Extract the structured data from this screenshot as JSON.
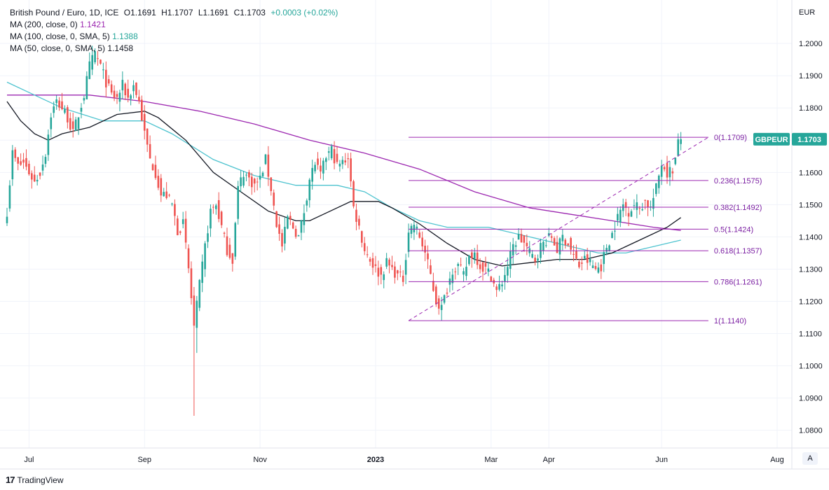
{
  "legend": {
    "title": "British Pound / Euro, 1D, ICE",
    "ohlc": {
      "o": "O1.1691",
      "h": "H1.1707",
      "l": "L1.1691",
      "c": "C1.1703",
      "chg": "+0.0003 (+0.02%)"
    },
    "ma200": {
      "label": "MA (200, close, 0)",
      "value": "1.1421"
    },
    "ma100": {
      "label": "MA (100, close, 0, SMA, 5)",
      "value": "1.1388"
    },
    "ma50": {
      "label": "MA (50, close, 0, SMA, 5)",
      "value": "1.1458"
    }
  },
  "footer": {
    "brand": "TradingView",
    "logo": "17"
  },
  "auto_button": "A",
  "chart_data": {
    "type": "candlestick",
    "currency": "EUR",
    "symbol_tag": "GBPEUR",
    "last_price": "1.1703",
    "ylim": [
      1.0745,
      1.2135
    ],
    "y_ticks": [
      "1.0800",
      "1.0900",
      "1.1000",
      "1.1100",
      "1.1200",
      "1.1300",
      "1.1400",
      "1.1500",
      "1.1600",
      "1.1700",
      "1.1800",
      "1.1900",
      "1.2000"
    ],
    "x_ticks": [
      {
        "label": "Jul",
        "index": 8
      },
      {
        "label": "Sep",
        "index": 50
      },
      {
        "label": "Nov",
        "index": 92
      },
      {
        "label": "2023",
        "index": 134
      },
      {
        "label": "Mar",
        "index": 176
      },
      {
        "label": "Apr",
        "index": 197
      },
      {
        "label": "Jun",
        "index": 238
      },
      {
        "label": "Aug",
        "index": 280
      }
    ],
    "bars_total": 300,
    "waypoints": [
      [
        0,
        1.148
      ],
      [
        2,
        1.166
      ],
      [
        4,
        1.162
      ],
      [
        6,
        1.163
      ],
      [
        8,
        1.16
      ],
      [
        10,
        1.157
      ],
      [
        12,
        1.16
      ],
      [
        14,
        1.166
      ],
      [
        16,
        1.178
      ],
      [
        18,
        1.182
      ],
      [
        20,
        1.18
      ],
      [
        22,
        1.177
      ],
      [
        24,
        1.172
      ],
      [
        26,
        1.178
      ],
      [
        28,
        1.184
      ],
      [
        30,
        1.193
      ],
      [
        32,
        1.197
      ],
      [
        34,
        1.193
      ],
      [
        36,
        1.188
      ],
      [
        38,
        1.184
      ],
      [
        40,
        1.183
      ],
      [
        42,
        1.187
      ],
      [
        44,
        1.183
      ],
      [
        46,
        1.187
      ],
      [
        48,
        1.182
      ],
      [
        50,
        1.172
      ],
      [
        52,
        1.164
      ],
      [
        54,
        1.16
      ],
      [
        56,
        1.153
      ],
      [
        58,
        1.153
      ],
      [
        60,
        1.15
      ],
      [
        62,
        1.142
      ],
      [
        64,
        1.144
      ],
      [
        66,
        1.13
      ],
      [
        68,
        1.112
      ],
      [
        70,
        1.125
      ],
      [
        72,
        1.137
      ],
      [
        74,
        1.148
      ],
      [
        76,
        1.15
      ],
      [
        78,
        1.143
      ],
      [
        80,
        1.136
      ],
      [
        82,
        1.133
      ],
      [
        84,
        1.155
      ],
      [
        86,
        1.16
      ],
      [
        88,
        1.158
      ],
      [
        90,
        1.156
      ],
      [
        92,
        1.158
      ],
      [
        94,
        1.164
      ],
      [
        96,
        1.155
      ],
      [
        98,
        1.144
      ],
      [
        100,
        1.137
      ],
      [
        102,
        1.146
      ],
      [
        104,
        1.143
      ],
      [
        106,
        1.14
      ],
      [
        108,
        1.148
      ],
      [
        110,
        1.158
      ],
      [
        112,
        1.163
      ],
      [
        114,
        1.159
      ],
      [
        116,
        1.165
      ],
      [
        118,
        1.167
      ],
      [
        120,
        1.162
      ],
      [
        122,
        1.163
      ],
      [
        124,
        1.165
      ],
      [
        126,
        1.149
      ],
      [
        128,
        1.143
      ],
      [
        130,
        1.136
      ],
      [
        132,
        1.133
      ],
      [
        134,
        1.13
      ],
      [
        136,
        1.128
      ],
      [
        138,
        1.132
      ],
      [
        140,
        1.13
      ],
      [
        142,
        1.128
      ],
      [
        144,
        1.127
      ],
      [
        146,
        1.142
      ],
      [
        148,
        1.144
      ],
      [
        150,
        1.14
      ],
      [
        152,
        1.135
      ],
      [
        154,
        1.128
      ],
      [
        156,
        1.12
      ],
      [
        158,
        1.118
      ],
      [
        160,
        1.124
      ],
      [
        162,
        1.13
      ],
      [
        164,
        1.131
      ],
      [
        166,
        1.128
      ],
      [
        168,
        1.134
      ],
      [
        170,
        1.135
      ],
      [
        172,
        1.131
      ],
      [
        174,
        1.13
      ],
      [
        176,
        1.128
      ],
      [
        178,
        1.123
      ],
      [
        180,
        1.126
      ],
      [
        182,
        1.131
      ],
      [
        184,
        1.137
      ],
      [
        186,
        1.14
      ],
      [
        188,
        1.138
      ],
      [
        190,
        1.135
      ],
      [
        192,
        1.133
      ],
      [
        194,
        1.137
      ],
      [
        196,
        1.139
      ],
      [
        198,
        1.14
      ],
      [
        200,
        1.136
      ],
      [
        202,
        1.14
      ],
      [
        204,
        1.138
      ],
      [
        206,
        1.134
      ],
      [
        208,
        1.131
      ],
      [
        210,
        1.133
      ],
      [
        212,
        1.132
      ],
      [
        214,
        1.13
      ],
      [
        216,
        1.131
      ],
      [
        218,
        1.137
      ],
      [
        220,
        1.141
      ],
      [
        222,
        1.146
      ],
      [
        224,
        1.15
      ],
      [
        226,
        1.148
      ],
      [
        228,
        1.15
      ],
      [
        230,
        1.149
      ],
      [
        232,
        1.151
      ],
      [
        234,
        1.149
      ],
      [
        236,
        1.155
      ],
      [
        238,
        1.163
      ],
      [
        240,
        1.16
      ],
      [
        242,
        1.161
      ],
      [
        243,
        1.164
      ],
      [
        244,
        1.169
      ],
      [
        245,
        1.1703
      ]
    ],
    "ma200": [
      [
        0,
        1.184
      ],
      [
        30,
        1.184
      ],
      [
        50,
        1.182
      ],
      [
        70,
        1.179
      ],
      [
        90,
        1.175
      ],
      [
        110,
        1.17
      ],
      [
        130,
        1.166
      ],
      [
        150,
        1.161
      ],
      [
        170,
        1.154
      ],
      [
        190,
        1.149
      ],
      [
        205,
        1.147
      ],
      [
        220,
        1.145
      ],
      [
        235,
        1.143
      ],
      [
        245,
        1.142
      ]
    ],
    "ma100": [
      [
        0,
        1.188
      ],
      [
        10,
        1.184
      ],
      [
        20,
        1.18
      ],
      [
        35,
        1.176
      ],
      [
        50,
        1.176
      ],
      [
        60,
        1.172
      ],
      [
        75,
        1.164
      ],
      [
        90,
        1.159
      ],
      [
        105,
        1.156
      ],
      [
        120,
        1.156
      ],
      [
        130,
        1.154
      ],
      [
        140,
        1.149
      ],
      [
        150,
        1.145
      ],
      [
        160,
        1.143
      ],
      [
        175,
        1.143
      ],
      [
        190,
        1.14
      ],
      [
        205,
        1.137
      ],
      [
        215,
        1.135
      ],
      [
        225,
        1.135
      ],
      [
        235,
        1.137
      ],
      [
        245,
        1.139
      ]
    ],
    "ma50": [
      [
        0,
        1.182
      ],
      [
        5,
        1.176
      ],
      [
        10,
        1.172
      ],
      [
        15,
        1.17
      ],
      [
        20,
        1.172
      ],
      [
        30,
        1.174
      ],
      [
        40,
        1.178
      ],
      [
        50,
        1.179
      ],
      [
        55,
        1.177
      ],
      [
        65,
        1.17
      ],
      [
        75,
        1.16
      ],
      [
        85,
        1.154
      ],
      [
        95,
        1.148
      ],
      [
        105,
        1.145
      ],
      [
        110,
        1.145
      ],
      [
        115,
        1.147
      ],
      [
        125,
        1.151
      ],
      [
        135,
        1.151
      ],
      [
        140,
        1.149
      ],
      [
        150,
        1.144
      ],
      [
        160,
        1.138
      ],
      [
        170,
        1.133
      ],
      [
        180,
        1.131
      ],
      [
        190,
        1.132
      ],
      [
        200,
        1.133
      ],
      [
        210,
        1.133
      ],
      [
        220,
        1.135
      ],
      [
        230,
        1.139
      ],
      [
        240,
        1.143
      ],
      [
        245,
        1.146
      ]
    ],
    "fib_levels": [
      {
        "label": "0(1.1709)",
        "value": 1.1709
      },
      {
        "label": "0.236(1.1575)",
        "value": 1.1575
      },
      {
        "label": "0.382(1.1492)",
        "value": 1.1492
      },
      {
        "label": "0.5(1.1424)",
        "value": 1.1424
      },
      {
        "label": "0.618(1.1357)",
        "value": 1.1357
      },
      {
        "label": "0.786(1.1261)",
        "value": 1.1261
      },
      {
        "label": "1(1.1140)",
        "value": 1.114
      }
    ],
    "fib_start_index": 146,
    "fib_end_index": 255,
    "fib_trend": {
      "from": [
        146,
        1.114
      ],
      "to": [
        255,
        1.1709
      ]
    },
    "colors": {
      "up": "#26a69a",
      "down": "#ef5350",
      "ma200": "#9c27b0",
      "ma100": "#4ec3cf",
      "ma50": "#131722",
      "fib": "#9c27b0",
      "grid": "#f0f3fa",
      "tag": "#26a69a"
    }
  }
}
